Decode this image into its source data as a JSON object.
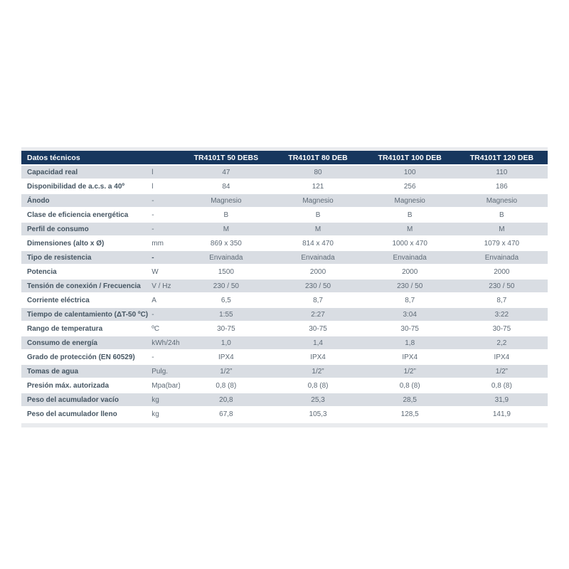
{
  "colors": {
    "header_bg": "#17375e",
    "header_text": "#ffffff",
    "row_alt_bg": "#d9dde3",
    "row_bg": "#ffffff",
    "strip_bg": "#e9ebee",
    "label_text": "#455562",
    "value_text": "#5e6a76"
  },
  "table": {
    "title": "Datos técnicos",
    "columns": [
      "TR4101T 50 DEBS",
      "TR4101T 80 DEB",
      "TR4101T 100 DEB",
      "TR4101T 120 DEB"
    ],
    "rows": [
      {
        "label": "Capacidad real",
        "unit": "l",
        "values": [
          "47",
          "80",
          "100",
          "110"
        ]
      },
      {
        "label": "Disponibilidad de a.c.s. a 40º",
        "unit": "l",
        "values": [
          "84",
          "121",
          "256",
          "186"
        ]
      },
      {
        "label": "Ánodo",
        "unit": "-",
        "values": [
          "Magnesio",
          "Magnesio",
          "Magnesio",
          "Magnesio"
        ]
      },
      {
        "label": "Clase de eficiencia energética",
        "unit": "-",
        "values": [
          "B",
          "B",
          "B",
          "B"
        ]
      },
      {
        "label": "Perfil de consumo",
        "unit": "-",
        "values": [
          "M",
          "M",
          "M",
          "M"
        ]
      },
      {
        "label": "Dimensiones (alto x Ø)",
        "unit": "mm",
        "values": [
          "869 x 350",
          "814 x 470",
          "1000 x 470",
          "1079 x 470"
        ]
      },
      {
        "label": "Tipo de resistencia",
        "unit": "-",
        "unit_bold": true,
        "values": [
          "Envainada",
          "Envainada",
          "Envainada",
          "Envainada"
        ]
      },
      {
        "label": "Potencia",
        "unit": "W",
        "values": [
          "1500",
          "2000",
          "2000",
          "2000"
        ]
      },
      {
        "label": "Tensión de conexión / Frecuencia",
        "unit": "V / Hz",
        "values": [
          "230 / 50",
          "230 / 50",
          "230 / 50",
          "230 / 50"
        ]
      },
      {
        "label": "Corriente eléctrica",
        "unit": "A",
        "values": [
          "6,5",
          "8,7",
          "8,7",
          "8,7"
        ]
      },
      {
        "label": "Tiempo de calentamiento (ΔT-50 ºC)",
        "unit": "-",
        "values": [
          "1:55",
          "2:27",
          "3:04",
          "3:22"
        ]
      },
      {
        "label": "Rango de temperatura",
        "unit": "ºC",
        "values": [
          "30-75",
          "30-75",
          "30-75",
          "30-75"
        ]
      },
      {
        "label": "Consumo de energía",
        "unit": "kWh/24h",
        "values": [
          "1,0",
          "1,4",
          "1,8",
          "2,2"
        ]
      },
      {
        "label": "Grado de protección (EN 60529)",
        "unit": "-",
        "values": [
          "IPX4",
          "IPX4",
          "IPX4",
          "IPX4"
        ]
      },
      {
        "label": "Tomas de agua",
        "unit": "Pulg.",
        "values": [
          "1/2”",
          "1/2”",
          "1/2”",
          "1/2”"
        ]
      },
      {
        "label": "Presión máx. autorizada",
        "unit": "Mpa(bar)",
        "values": [
          "0,8 (8)",
          "0,8 (8)",
          "0,8 (8)",
          "0,8 (8)"
        ]
      },
      {
        "label": "Peso del acumulador vacío",
        "unit": "kg",
        "values": [
          "20,8",
          "25,3",
          "28,5",
          "31,9"
        ]
      },
      {
        "label": "Peso del acumulador lleno",
        "unit": "kg",
        "values": [
          "67,8",
          "105,3",
          "128,5",
          "141,9"
        ]
      }
    ]
  }
}
